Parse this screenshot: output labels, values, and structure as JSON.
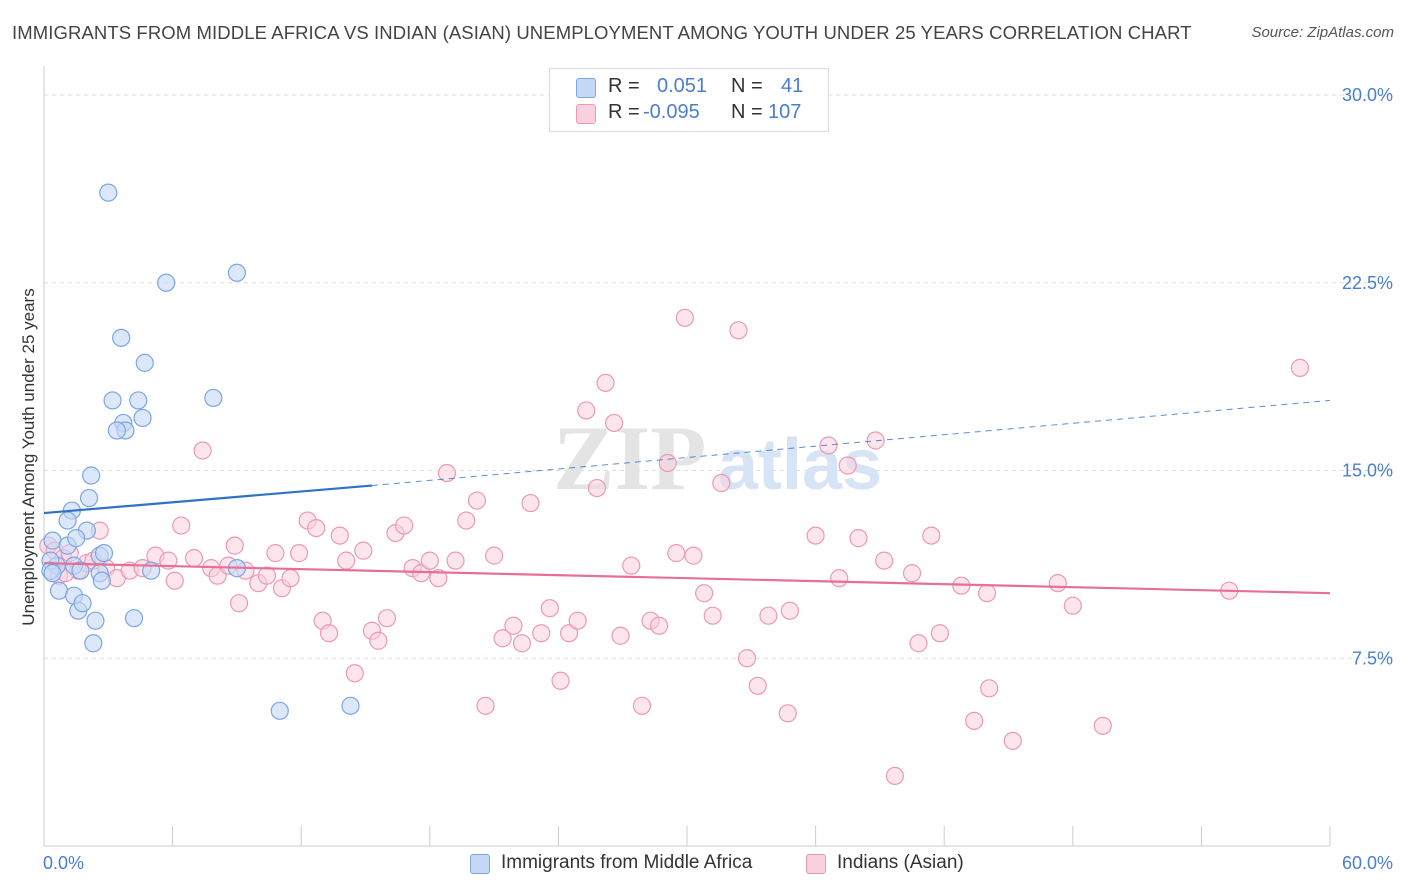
{
  "title": "IMMIGRANTS FROM MIDDLE AFRICA VS INDIAN (ASIAN) UNEMPLOYMENT AMONG YOUTH UNDER 25 YEARS CORRELATION CHART",
  "source": "Source: ZipAtlas.com",
  "watermark": {
    "zip": "ZIP",
    "atlas": "atlas"
  },
  "colors": {
    "blue_fill": "#c4d9f6",
    "blue_stroke": "#7aa6e3",
    "blue_line": "#2f72c8",
    "pink_fill": "#f9d0dd",
    "pink_stroke": "#ec99b5",
    "pink_line": "#e57097",
    "axis_label": "#4a7fd0",
    "grid": "#dddddd"
  },
  "legend_top": [
    {
      "r_label": "R =",
      "r_value": "0.051",
      "n_label": "N =",
      "n_value": "41"
    },
    {
      "r_label": "R =",
      "r_value": "-0.095",
      "n_label": "N =",
      "n_value": "107"
    }
  ],
  "chart_data": {
    "type": "scatter",
    "ylabel": "Unemployment Among Youth under 25 years",
    "xlim": [
      0,
      60
    ],
    "ylim": [
      0,
      31
    ],
    "x_tick_labels": [
      "0.0%",
      "60.0%"
    ],
    "y_ticks": [
      7.5,
      15.0,
      22.5,
      30.0
    ],
    "y_tick_labels": [
      "7.5%",
      "15.0%",
      "22.5%",
      "30.0%"
    ],
    "grid": true,
    "legend_position": "bottom-center",
    "series": [
      {
        "name": "Immigrants from Middle Africa",
        "color": "blue",
        "trend": {
          "x0": 0,
          "y0": 13.3,
          "x1": 15.3,
          "y1": 14.4,
          "x2": 60,
          "y2": 17.8
        },
        "points": [
          [
            3.0,
            26.1
          ],
          [
            5.7,
            22.5
          ],
          [
            9.0,
            22.9
          ],
          [
            3.6,
            20.3
          ],
          [
            4.7,
            19.3
          ],
          [
            3.2,
            17.8
          ],
          [
            4.4,
            17.8
          ],
          [
            7.9,
            17.9
          ],
          [
            4.6,
            17.1
          ],
          [
            3.7,
            16.9
          ],
          [
            3.8,
            16.6
          ],
          [
            3.4,
            16.6
          ],
          [
            2.2,
            14.8
          ],
          [
            2.1,
            13.9
          ],
          [
            1.3,
            13.4
          ],
          [
            1.1,
            13.0
          ],
          [
            0.4,
            12.2
          ],
          [
            2.0,
            12.6
          ],
          [
            1.1,
            12.0
          ],
          [
            1.5,
            12.3
          ],
          [
            0.6,
            11.2
          ],
          [
            0.3,
            11.4
          ],
          [
            2.6,
            11.6
          ],
          [
            2.8,
            11.7
          ],
          [
            0.3,
            11.0
          ],
          [
            1.4,
            11.2
          ],
          [
            1.7,
            11.0
          ],
          [
            0.4,
            10.9
          ],
          [
            5.0,
            11.0
          ],
          [
            9.0,
            11.1
          ],
          [
            0.7,
            10.2
          ],
          [
            2.6,
            10.9
          ],
          [
            1.4,
            10.0
          ],
          [
            2.7,
            10.6
          ],
          [
            1.6,
            9.4
          ],
          [
            1.8,
            9.7
          ],
          [
            2.4,
            9.0
          ],
          [
            4.2,
            9.1
          ],
          [
            2.3,
            8.1
          ],
          [
            11.0,
            5.4
          ],
          [
            14.3,
            5.6
          ]
        ]
      },
      {
        "name": "Indians (Asian)",
        "color": "pink",
        "trend": {
          "x0": 0,
          "y0": 11.3,
          "x1": 60,
          "y1": 10.1
        },
        "points": [
          [
            0.2,
            12.0
          ],
          [
            0.5,
            11.8
          ],
          [
            0.9,
            11.5
          ],
          [
            1.2,
            11.7
          ],
          [
            1.6,
            11.0
          ],
          [
            2.0,
            11.3
          ],
          [
            2.3,
            11.4
          ],
          [
            0.7,
            10.8
          ],
          [
            1.0,
            10.9
          ],
          [
            2.6,
            12.6
          ],
          [
            2.9,
            11.1
          ],
          [
            3.4,
            10.7
          ],
          [
            4.0,
            11.0
          ],
          [
            4.6,
            11.1
          ],
          [
            5.2,
            11.6
          ],
          [
            5.8,
            11.4
          ],
          [
            6.1,
            10.6
          ],
          [
            6.4,
            12.8
          ],
          [
            7.0,
            11.5
          ],
          [
            7.4,
            15.8
          ],
          [
            7.8,
            11.1
          ],
          [
            8.1,
            10.8
          ],
          [
            8.6,
            11.2
          ],
          [
            8.9,
            12.0
          ],
          [
            9.1,
            9.7
          ],
          [
            9.4,
            11.0
          ],
          [
            10.0,
            10.5
          ],
          [
            10.4,
            10.8
          ],
          [
            10.8,
            11.7
          ],
          [
            11.1,
            10.3
          ],
          [
            11.5,
            10.7
          ],
          [
            11.9,
            11.7
          ],
          [
            12.3,
            13.0
          ],
          [
            12.7,
            12.7
          ],
          [
            13.0,
            9.0
          ],
          [
            13.3,
            8.5
          ],
          [
            13.8,
            12.4
          ],
          [
            14.1,
            11.4
          ],
          [
            14.5,
            6.9
          ],
          [
            14.9,
            11.8
          ],
          [
            15.3,
            8.6
          ],
          [
            15.6,
            8.2
          ],
          [
            16.0,
            9.1
          ],
          [
            16.4,
            12.5
          ],
          [
            16.8,
            12.8
          ],
          [
            17.2,
            11.1
          ],
          [
            17.6,
            10.9
          ],
          [
            18.0,
            11.4
          ],
          [
            18.4,
            10.7
          ],
          [
            18.8,
            14.9
          ],
          [
            19.2,
            11.4
          ],
          [
            19.7,
            13.0
          ],
          [
            20.2,
            13.8
          ],
          [
            20.6,
            5.6
          ],
          [
            21.0,
            11.6
          ],
          [
            21.4,
            8.3
          ],
          [
            21.9,
            8.8
          ],
          [
            22.3,
            8.1
          ],
          [
            22.7,
            13.7
          ],
          [
            23.2,
            8.5
          ],
          [
            23.6,
            9.5
          ],
          [
            24.1,
            6.6
          ],
          [
            24.5,
            8.5
          ],
          [
            24.9,
            9.0
          ],
          [
            25.3,
            17.4
          ],
          [
            25.8,
            14.3
          ],
          [
            26.2,
            18.5
          ],
          [
            26.6,
            16.9
          ],
          [
            26.9,
            8.4
          ],
          [
            27.4,
            11.2
          ],
          [
            27.9,
            5.6
          ],
          [
            28.3,
            9.0
          ],
          [
            28.7,
            8.8
          ],
          [
            29.1,
            15.3
          ],
          [
            29.5,
            11.7
          ],
          [
            29.9,
            21.1
          ],
          [
            30.3,
            11.6
          ],
          [
            30.8,
            10.1
          ],
          [
            31.2,
            9.2
          ],
          [
            31.6,
            14.5
          ],
          [
            32.4,
            20.6
          ],
          [
            32.8,
            7.5
          ],
          [
            33.3,
            6.4
          ],
          [
            33.8,
            9.2
          ],
          [
            34.7,
            5.3
          ],
          [
            34.8,
            9.4
          ],
          [
            36.0,
            12.4
          ],
          [
            36.6,
            16.0
          ],
          [
            37.1,
            10.7
          ],
          [
            37.5,
            15.2
          ],
          [
            38.0,
            12.3
          ],
          [
            38.8,
            16.2
          ],
          [
            39.2,
            11.4
          ],
          [
            39.7,
            2.8
          ],
          [
            40.5,
            10.9
          ],
          [
            40.8,
            8.1
          ],
          [
            41.4,
            12.4
          ],
          [
            41.8,
            8.5
          ],
          [
            42.8,
            10.4
          ],
          [
            43.4,
            5.0
          ],
          [
            44.0,
            10.1
          ],
          [
            44.1,
            6.3
          ],
          [
            45.2,
            4.2
          ],
          [
            47.3,
            10.5
          ],
          [
            48.0,
            9.6
          ],
          [
            49.4,
            4.8
          ],
          [
            55.3,
            10.2
          ],
          [
            58.6,
            19.1
          ]
        ]
      }
    ]
  }
}
